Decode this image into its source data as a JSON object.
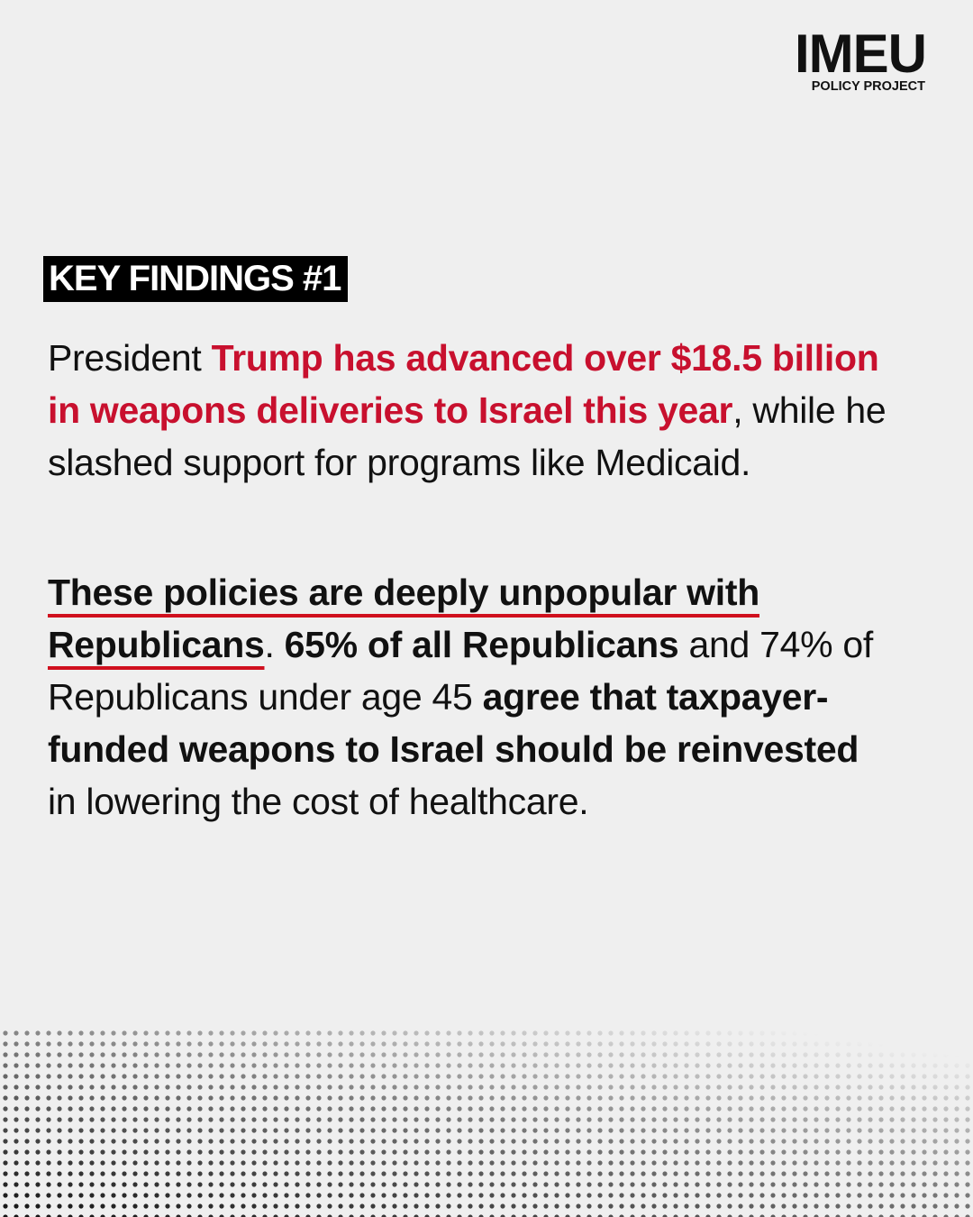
{
  "logo": {
    "title": "IMEU",
    "subtitle": "POLICY PROJECT"
  },
  "heading": "KEY FINDINGS #1",
  "paragraphs": [
    [
      {
        "text": "President ",
        "style": "plain"
      },
      {
        "text": "Trump has advanced over $18.5 billion in weapons deliveries to Israel this year",
        "style": "red-bold"
      },
      {
        "text": ", while he slashed support for programs like Medicaid.",
        "style": "plain"
      }
    ],
    [
      {
        "text": "These policies are deeply unpopular with Republicans",
        "style": "bold-underline"
      },
      {
        "text": ". ",
        "style": "plain"
      },
      {
        "text": "65% of all Republicans",
        "style": "bold"
      },
      {
        "text": " and 74% of Republicans under age 45 ",
        "style": "plain"
      },
      {
        "text": "agree that taxpayer-funded weapons to Israel should be reinvested",
        "style": "bold"
      },
      {
        "text": " in lowering the cost of healthcare.",
        "style": "plain"
      }
    ]
  ]
}
